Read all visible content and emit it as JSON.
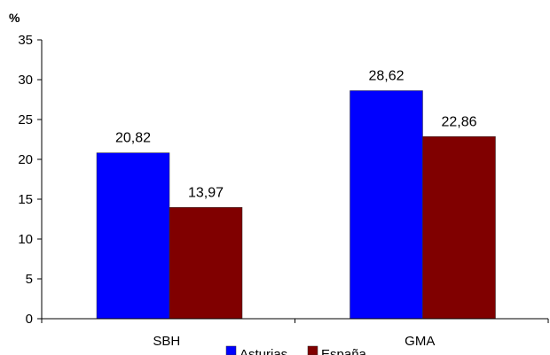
{
  "chart_data": {
    "type": "bar",
    "ylabel": "%",
    "categories": [
      "SBH",
      "GMA"
    ],
    "series": [
      {
        "name": "Asturias",
        "values": [
          20.82,
          28.62
        ],
        "labels": [
          "20,82",
          "28,62"
        ],
        "color": "#0000ff"
      },
      {
        "name": "España",
        "values": [
          13.97,
          22.86
        ],
        "labels": [
          "13,97",
          "22,86"
        ],
        "color": "#800000"
      }
    ],
    "ylim": [
      0,
      35
    ],
    "yticks": [
      0,
      5,
      10,
      15,
      20,
      25,
      30,
      35
    ],
    "grid": false,
    "legend": "bottom"
  }
}
